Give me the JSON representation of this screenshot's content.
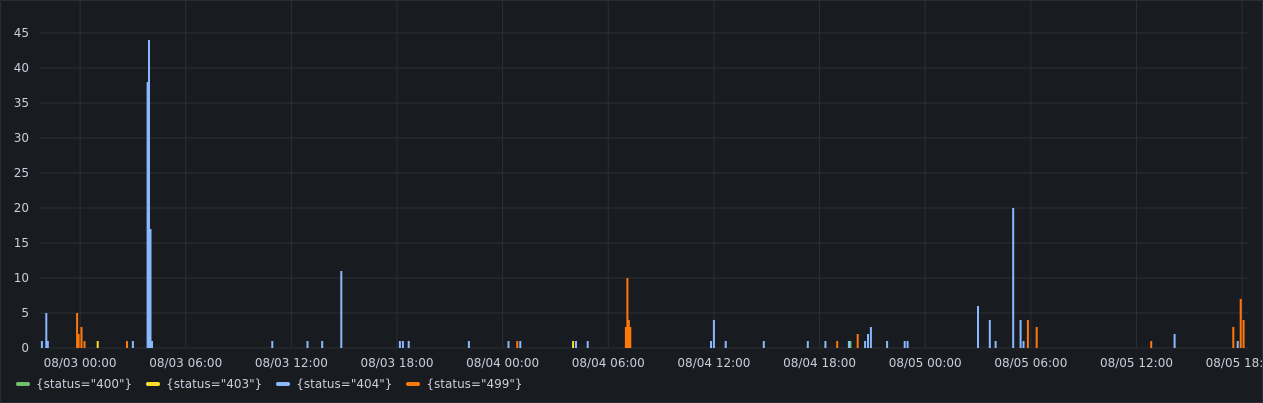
{
  "chart_data": {
    "type": "bar",
    "x_unit": "time",
    "ylim": [
      0,
      47
    ],
    "y_ticks": [
      0,
      5,
      10,
      15,
      20,
      25,
      30,
      35,
      40,
      45
    ],
    "x_ticks": [
      {
        "t": "08/03 00:00",
        "label": "08/03 00:00"
      },
      {
        "t": "08/03 06:00",
        "label": "08/03 06:00"
      },
      {
        "t": "08/03 12:00",
        "label": "08/03 12:00"
      },
      {
        "t": "08/03 18:00",
        "label": "08/03 18:00"
      },
      {
        "t": "08/04 00:00",
        "label": "08/04 00:00"
      },
      {
        "t": "08/04 06:00",
        "label": "08/04 06:00"
      },
      {
        "t": "08/04 12:00",
        "label": "08/04 12:00"
      },
      {
        "t": "08/04 18:00",
        "label": "08/04 18:00"
      },
      {
        "t": "08/05 00:00",
        "label": "08/05 00:00"
      },
      {
        "t": "08/05 06:00",
        "label": "08/05 06:00"
      },
      {
        "t": "08/05 12:00",
        "label": "08/05 12:00"
      },
      {
        "t": "08/05 18:00",
        "label": "08/05 18:00"
      }
    ],
    "x_range": [
      "08/02 21:40",
      "08/05 18:20"
    ],
    "grid": true,
    "legend_position": "bottom-left",
    "series": [
      {
        "name": "{status=\"400\"}",
        "color": "#73bf69",
        "points": [
          [
            "08/04 19:45",
            1
          ]
        ]
      },
      {
        "name": "{status=\"403\"}",
        "color": "#fade2a",
        "points": [
          [
            "08/03 01:00",
            1
          ],
          [
            "08/04 04:00",
            1
          ]
        ]
      },
      {
        "name": "{status=\"404\"}",
        "color": "#8ab8ff",
        "points": [
          [
            "08/02 21:50",
            1
          ],
          [
            "08/02 22:05",
            5
          ],
          [
            "08/02 22:10",
            1
          ],
          [
            "08/03 03:00",
            1
          ],
          [
            "08/03 03:50",
            38
          ],
          [
            "08/03 03:55",
            44
          ],
          [
            "08/03 04:00",
            17
          ],
          [
            "08/03 04:05",
            1
          ],
          [
            "08/03 10:55",
            1
          ],
          [
            "08/03 12:55",
            1
          ],
          [
            "08/03 13:45",
            1
          ],
          [
            "08/03 14:50",
            11
          ],
          [
            "08/03 18:10",
            1
          ],
          [
            "08/03 18:20",
            1
          ],
          [
            "08/03 18:40",
            1
          ],
          [
            "08/03 22:05",
            1
          ],
          [
            "08/04 00:20",
            1
          ],
          [
            "08/04 01:00",
            1
          ],
          [
            "08/04 04:10",
            1
          ],
          [
            "08/04 04:50",
            1
          ],
          [
            "08/04 11:50",
            1
          ],
          [
            "08/04 12:00",
            4
          ],
          [
            "08/04 12:40",
            1
          ],
          [
            "08/04 14:50",
            1
          ],
          [
            "08/04 17:20",
            1
          ],
          [
            "08/04 18:20",
            1
          ],
          [
            "08/04 19:40",
            1
          ],
          [
            "08/04 20:35",
            1
          ],
          [
            "08/04 20:45",
            2
          ],
          [
            "08/04 20:55",
            3
          ],
          [
            "08/04 21:50",
            1
          ],
          [
            "08/04 22:50",
            1
          ],
          [
            "08/04 23:00",
            1
          ],
          [
            "08/05 03:00",
            6
          ],
          [
            "08/05 03:40",
            4
          ],
          [
            "08/05 04:00",
            1
          ],
          [
            "08/05 05:00",
            20
          ],
          [
            "08/05 05:25",
            4
          ],
          [
            "08/05 05:35",
            1
          ],
          [
            "08/05 14:10",
            2
          ],
          [
            "08/05 17:45",
            1
          ]
        ]
      },
      {
        "name": "{status=\"499\"}",
        "color": "#ff780a",
        "points": [
          [
            "08/02 23:50",
            5
          ],
          [
            "08/02 23:55",
            2
          ],
          [
            "08/03 00:05",
            3
          ],
          [
            "08/03 00:15",
            1
          ],
          [
            "08/03 02:40",
            1
          ],
          [
            "08/04 00:50",
            1
          ],
          [
            "08/04 07:00",
            3
          ],
          [
            "08/04 07:05",
            10
          ],
          [
            "08/04 07:10",
            4
          ],
          [
            "08/04 07:15",
            3
          ],
          [
            "08/04 19:00",
            1
          ],
          [
            "08/04 20:10",
            2
          ],
          [
            "08/05 05:50",
            4
          ],
          [
            "08/05 06:20",
            3
          ],
          [
            "08/05 12:50",
            1
          ],
          [
            "08/05 17:30",
            3
          ],
          [
            "08/05 17:55",
            7
          ],
          [
            "08/05 18:05",
            4
          ]
        ]
      }
    ]
  }
}
